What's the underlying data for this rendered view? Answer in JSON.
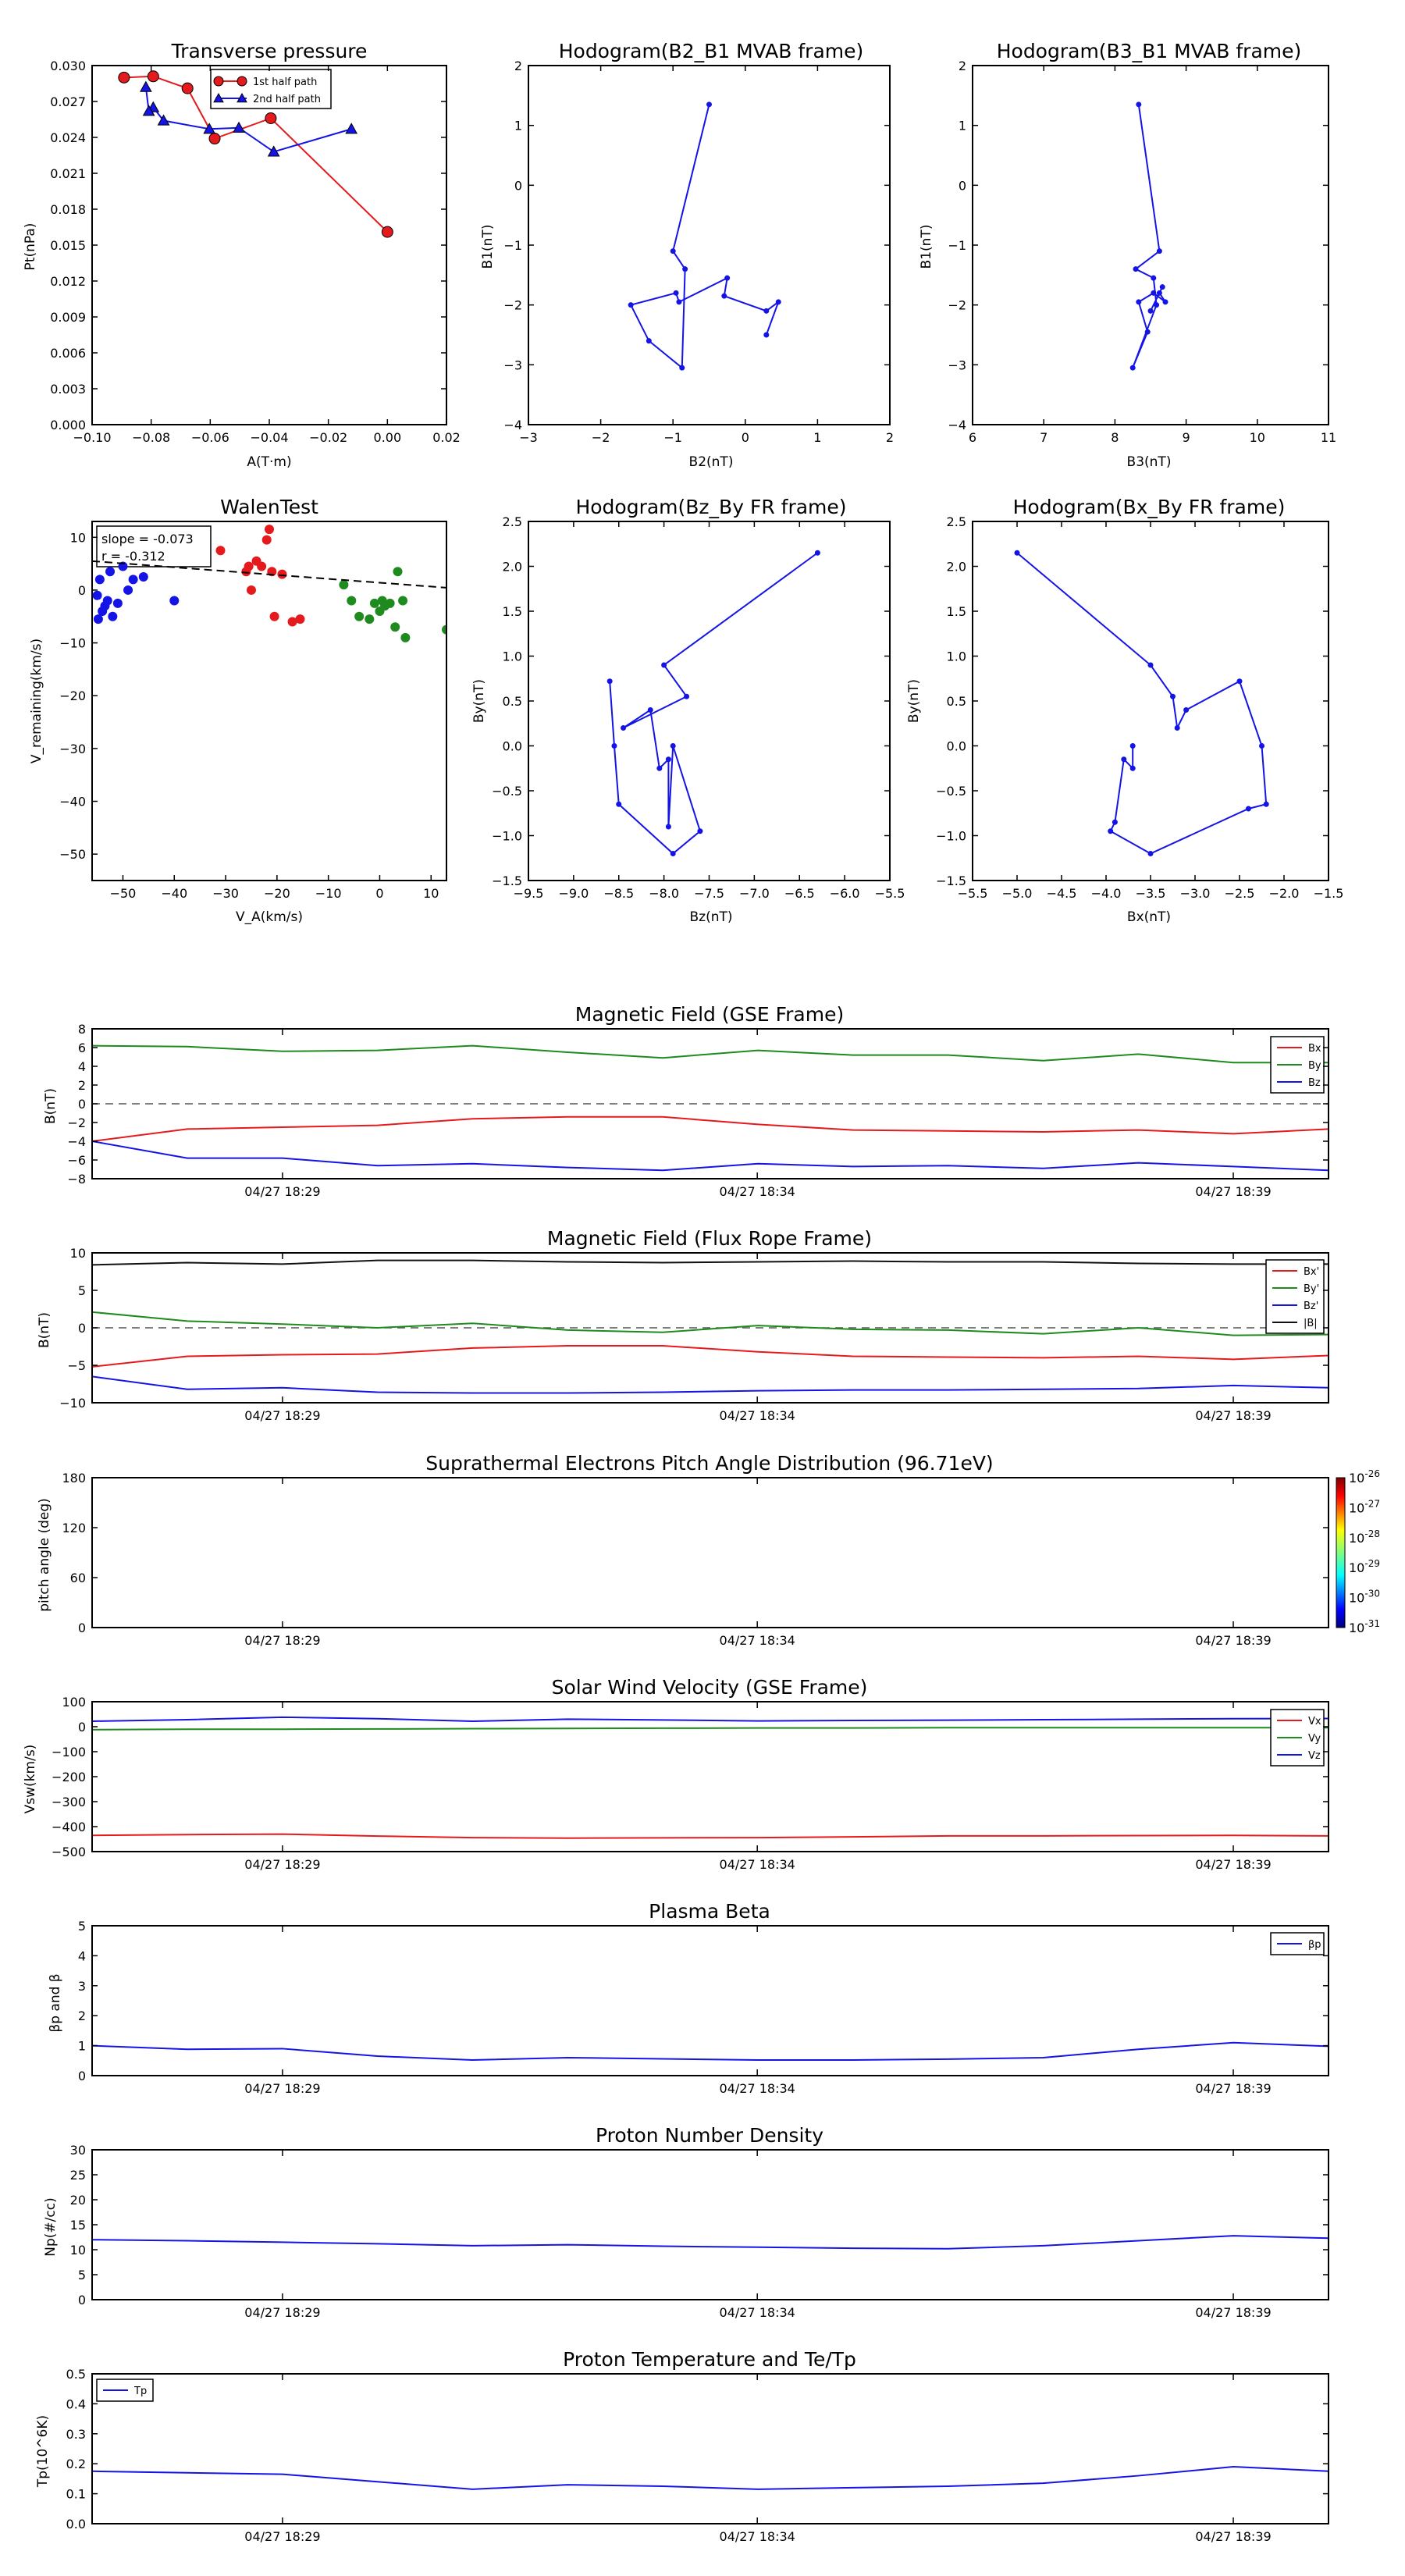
{
  "figure": {
    "colors": {
      "red": "#e41a1c",
      "green": "#1f8b1f",
      "blue": "#1414e6",
      "black": "#111111"
    }
  },
  "panels": {
    "transverse_pressure": {
      "title": "Transverse pressure",
      "xlabel": "A(T·m)",
      "ylabel": "Pt(nPa)"
    },
    "hodo_b2b1": {
      "title": "Hodogram(B2_B1 MVAB frame)",
      "xlabel": "B2(nT)",
      "ylabel": "B1(nT)"
    },
    "hodo_b3b1": {
      "title": "Hodogram(B3_B1 MVAB frame)",
      "xlabel": "B3(nT)",
      "ylabel": "B1(nT)"
    },
    "walen": {
      "title": "WalenTest",
      "xlabel": "V_A(km/s)",
      "ylabel": "V_remaining(km/s)",
      "annot1": "slope = -0.073",
      "annot2": "r = -0.312"
    },
    "hodo_bzby": {
      "title": "Hodogram(Bz_By FR frame)",
      "xlabel": "Bz(nT)",
      "ylabel": "By(nT)"
    },
    "hodo_bxby": {
      "title": "Hodogram(Bx_By FR frame)",
      "xlabel": "Bx(nT)",
      "ylabel": "By(nT)"
    },
    "mag_gse": {
      "title": "Magnetic Field (GSE Frame)",
      "ylabel": "B(nT)"
    },
    "mag_fr": {
      "title": "Magnetic Field (Flux Rope Frame)",
      "ylabel": "B(nT)"
    },
    "pad": {
      "title": "Suprathermal Electrons Pitch Angle Distribution (96.71eV)",
      "ylabel": "pitch angle (deg)",
      "colorbar_ticks": [
        "10^-26",
        "10^-27",
        "10^-28",
        "10^-29",
        "10^-30",
        "10^-31"
      ]
    },
    "vsw": {
      "title": "Solar Wind Velocity (GSE Frame)",
      "ylabel": "Vsw(km/s)"
    },
    "beta": {
      "title": "Plasma Beta",
      "ylabel": "βp and β"
    },
    "density": {
      "title": "Proton Number Density",
      "ylabel": "Np(#/cc)"
    },
    "temperature": {
      "title": "Proton Temperature and Te/Tp",
      "ylabel": "Tp(10^6K)"
    }
  },
  "chart_data": [
    {
      "id": "transverse_pressure",
      "type": "line",
      "xlim": [
        -0.1,
        0.02
      ],
      "ylim": [
        0,
        0.03
      ],
      "xticks": [
        "−0.10",
        "−0.08",
        "−0.06",
        "−0.04",
        "−0.02",
        "0.00",
        "0.02"
      ],
      "yticks": [
        "0.000",
        "0.003",
        "0.006",
        "0.009",
        "0.012",
        "0.015",
        "0.018",
        "0.021",
        "0.024",
        "0.027",
        "0.030"
      ],
      "legend_position": "upper-center",
      "series": [
        {
          "name": "1st half path",
          "color": "#e41a1c",
          "marker": "circle",
          "x": [
            0.0,
            -0.0395,
            -0.0585,
            -0.0677,
            -0.0793,
            -0.0892
          ],
          "y": [
            0.0161,
            0.0256,
            0.0239,
            0.0281,
            0.0291,
            0.029
          ]
        },
        {
          "name": "2nd half path",
          "color": "#1414e6",
          "marker": "triangle",
          "x": [
            -0.0122,
            -0.0385,
            -0.0503,
            -0.0603,
            -0.0758,
            -0.0793,
            -0.0808,
            -0.0818
          ],
          "y": [
            0.0247,
            0.0228,
            0.0248,
            0.0247,
            0.0254,
            0.0265,
            0.0262,
            0.0282
          ]
        }
      ]
    },
    {
      "id": "hodo_b2b1",
      "type": "line",
      "xlim": [
        -3.5,
        2.5
      ],
      "ylim": [
        -4,
        2
      ],
      "xticks": [
        "−3",
        "−2",
        "−1",
        "0",
        "1",
        "2"
      ],
      "yticks": [
        "−4",
        "−3",
        "−2",
        "−1",
        "0",
        "1",
        "2"
      ],
      "series": [
        {
          "color": "#1414e6",
          "x": [
            -0.5,
            -1.1,
            -0.9,
            -0.95,
            -1.5,
            -1.8,
            -1.05,
            -1.0,
            -0.2,
            -0.25,
            0.45,
            0.65,
            0.45
          ],
          "y": [
            1.35,
            -1.1,
            -1.4,
            -3.05,
            -2.6,
            -2.0,
            -1.8,
            -1.95,
            -1.55,
            -1.85,
            -2.1,
            -1.95,
            -2.5
          ]
        }
      ]
    },
    {
      "id": "hodo_b3b1",
      "type": "line",
      "xlim": [
        5.5,
        11.5
      ],
      "ylim": [
        -4,
        2
      ],
      "xticks": [
        "6",
        "7",
        "8",
        "9",
        "10",
        "11"
      ],
      "yticks": [
        "−4",
        "−3",
        "−2",
        "−1",
        "0",
        "1",
        "2"
      ],
      "series": [
        {
          "color": "#1414e6",
          "x": [
            8.3,
            8.65,
            8.25,
            8.55,
            8.6,
            8.2,
            8.45,
            8.3,
            8.55,
            8.75,
            8.65,
            8.7,
            8.5
          ],
          "y": [
            1.35,
            -1.1,
            -1.4,
            -1.55,
            -2.0,
            -3.05,
            -2.45,
            -1.95,
            -1.8,
            -1.95,
            -1.8,
            -1.7,
            -2.1
          ]
        }
      ]
    },
    {
      "id": "walen",
      "type": "scatter",
      "xlim": [
        -56,
        13
      ],
      "ylim": [
        -55,
        13
      ],
      "xticks": [
        "−50",
        "−40",
        "−30",
        "−20",
        "−10",
        "0",
        "10"
      ],
      "yticks": [
        "−50",
        "−40",
        "−30",
        "−20",
        "−10",
        "0",
        "10"
      ],
      "fit": {
        "slope": -0.073,
        "intercept": 1.4,
        "style": "dashed"
      },
      "series": [
        {
          "color": "#1414e6",
          "x": [
            -55,
            -54.5,
            -54,
            -53.5,
            -53,
            -52,
            -51,
            -50,
            -49,
            -48,
            -46,
            -40,
            -52.5,
            -54.8
          ],
          "y": [
            -1,
            2,
            -4,
            -3,
            -2,
            -5,
            -2.5,
            4.5,
            0,
            2,
            2.5,
            -2,
            3.5,
            -5.5
          ]
        },
        {
          "color": "#e41a1c",
          "x": [
            -31,
            -26,
            -25.5,
            -24,
            -23,
            -22,
            -21.5,
            -21,
            -20.5,
            -19,
            -17,
            -15.5,
            -25
          ],
          "y": [
            7.5,
            3.5,
            4.5,
            5.5,
            4.5,
            9.5,
            11.5,
            3.5,
            -5,
            3,
            -6,
            -5.5,
            0
          ]
        },
        {
          "color": "#1f8b1f",
          "x": [
            -7,
            -5.5,
            -4,
            -2,
            -1,
            0,
            0.5,
            1,
            2,
            3,
            3.5,
            4.5,
            5,
            13
          ],
          "y": [
            1,
            -2,
            -5,
            -5.5,
            -2.5,
            -4,
            -2,
            -3,
            -2.5,
            -7,
            3.5,
            -2,
            -9,
            -7.5
          ]
        }
      ]
    },
    {
      "id": "hodo_bzby",
      "type": "line",
      "xlim": [
        -9.5,
        -5.5
      ],
      "ylim": [
        -1.5,
        2.5
      ],
      "xticks": [
        "−9.5",
        "−9.0",
        "−8.5",
        "−8.0",
        "−7.5",
        "−7.0",
        "−6.5",
        "−6.0",
        "−5.5"
      ],
      "yticks": [
        "−1.5",
        "−1.0",
        "−0.5",
        "0.0",
        "0.5",
        "1.0",
        "1.5",
        "2.0",
        "2.5"
      ],
      "series": [
        {
          "color": "#1414e6",
          "x": [
            -6.3,
            -8.0,
            -7.75,
            -8.45,
            -8.15,
            -8.05,
            -7.95,
            -7.95,
            -7.9,
            -7.6,
            -7.9,
            -8.5,
            -8.55,
            -8.6
          ],
          "y": [
            2.15,
            0.9,
            0.55,
            0.2,
            0.4,
            -0.25,
            -0.15,
            -0.9,
            0.0,
            -0.95,
            -1.2,
            -0.65,
            0.0,
            0.72
          ]
        }
      ]
    },
    {
      "id": "hodo_bxby",
      "type": "line",
      "xlim": [
        -5.5,
        -1.5
      ],
      "ylim": [
        -1.5,
        2.5
      ],
      "xticks": [
        "−5.5",
        "−5.0",
        "−4.5",
        "−4.0",
        "−3.5",
        "−3.0",
        "−2.5",
        "−2.0",
        "−1.5"
      ],
      "yticks": [
        "−1.5",
        "−1.0",
        "−0.5",
        "0.0",
        "0.5",
        "1.0",
        "1.5",
        "2.0",
        "2.5"
      ],
      "series": [
        {
          "color": "#1414e6",
          "x": [
            -5.0,
            -3.5,
            -3.25,
            -3.2,
            -3.1,
            -2.5,
            -2.25,
            -2.2,
            -2.4,
            -3.5,
            -3.95,
            -3.9,
            -3.8,
            -3.7,
            -3.7
          ],
          "y": [
            2.15,
            0.9,
            0.55,
            0.2,
            0.4,
            0.72,
            0.0,
            -0.65,
            -0.7,
            -1.2,
            -0.95,
            -0.85,
            -0.15,
            -0.25,
            0.0
          ]
        }
      ]
    },
    {
      "id": "mag_gse",
      "type": "line",
      "ylim": [
        -8,
        8
      ],
      "yticks": [
        "−8",
        "−6",
        "−4",
        "−2",
        "0",
        "2",
        "4",
        "6",
        "8"
      ],
      "xticks": [
        "04/27 18:29",
        "04/27 18:34",
        "04/27 18:39"
      ],
      "zero_line": true,
      "series": [
        {
          "name": "Bx",
          "color": "#e41a1c",
          "y": [
            -4.0,
            -2.7,
            -2.5,
            -2.3,
            -1.6,
            -1.4,
            -1.4,
            -2.2,
            -2.8,
            -2.9,
            -3.0,
            -2.8,
            -3.2,
            -2.7
          ]
        },
        {
          "name": "By",
          "color": "#1f8b1f",
          "y": [
            6.2,
            6.1,
            5.6,
            5.7,
            6.2,
            5.5,
            4.9,
            5.7,
            5.2,
            5.2,
            4.6,
            5.3,
            4.4,
            4.4
          ]
        },
        {
          "name": "Bz",
          "color": "#1414e6",
          "y": [
            -4.0,
            -5.8,
            -5.8,
            -6.6,
            -6.4,
            -6.8,
            -7.1,
            -6.4,
            -6.7,
            -6.6,
            -6.9,
            -6.3,
            -6.7,
            -7.1
          ]
        }
      ]
    },
    {
      "id": "mag_fr",
      "type": "line",
      "ylim": [
        -10,
        10
      ],
      "yticks": [
        "−10",
        "−5",
        "0",
        "5",
        "10"
      ],
      "xticks": [
        "04/27 18:29",
        "04/27 18:34",
        "04/27 18:39"
      ],
      "zero_line": true,
      "series": [
        {
          "name": "Bx'",
          "color": "#e41a1c",
          "y": [
            -5.2,
            -3.8,
            -3.6,
            -3.5,
            -2.7,
            -2.4,
            -2.4,
            -3.2,
            -3.8,
            -3.9,
            -4.0,
            -3.8,
            -4.2,
            -3.7
          ]
        },
        {
          "name": "By'",
          "color": "#1f8b1f",
          "y": [
            2.1,
            0.9,
            0.5,
            0.0,
            0.6,
            -0.3,
            -0.6,
            0.3,
            -0.2,
            -0.3,
            -0.8,
            0.0,
            -1.0,
            -0.9
          ]
        },
        {
          "name": "Bz'",
          "color": "#1414e6",
          "y": [
            -6.5,
            -8.2,
            -8.0,
            -8.6,
            -8.7,
            -8.7,
            -8.6,
            -8.4,
            -8.3,
            -8.3,
            -8.2,
            -8.1,
            -7.7,
            -8.0
          ]
        },
        {
          "name": "|B|",
          "color": "#111111",
          "y": [
            8.4,
            8.7,
            8.5,
            9.0,
            9.0,
            8.8,
            8.7,
            8.8,
            8.9,
            8.8,
            8.8,
            8.6,
            8.5,
            8.5
          ]
        }
      ]
    },
    {
      "id": "pad",
      "type": "heatmap",
      "ylim": [
        0,
        180
      ],
      "yticks": [
        "0",
        "60",
        "120",
        "180"
      ],
      "xticks": [
        "04/27 18:29",
        "04/27 18:34",
        "04/27 18:39"
      ],
      "empty": true
    },
    {
      "id": "vsw",
      "type": "line",
      "ylim": [
        -500,
        100
      ],
      "yticks": [
        "−500",
        "−400",
        "−300",
        "−200",
        "−100",
        "0",
        "100"
      ],
      "xticks": [
        "04/27 18:29",
        "04/27 18:34",
        "04/27 18:39"
      ],
      "series": [
        {
          "name": "Vx",
          "color": "#e41a1c",
          "y": [
            -435,
            -432,
            -430,
            -438,
            -444,
            -446,
            -445,
            -444,
            -441,
            -437,
            -437,
            -436,
            -435,
            -437
          ]
        },
        {
          "name": "Vy",
          "color": "#1f8b1f",
          "y": [
            -12,
            -10,
            -10,
            -9,
            -8,
            -7,
            -6,
            -5,
            -5,
            -4,
            -4,
            -4,
            -4,
            -4
          ]
        },
        {
          "name": "Vz",
          "color": "#1414e6",
          "y": [
            22,
            28,
            38,
            32,
            22,
            30,
            27,
            23,
            25,
            26,
            28,
            30,
            32,
            33
          ]
        }
      ]
    },
    {
      "id": "beta",
      "type": "line",
      "ylim": [
        0,
        5
      ],
      "yticks": [
        "0",
        "1",
        "2",
        "3",
        "4",
        "5"
      ],
      "xticks": [
        "04/27 18:29",
        "04/27 18:34",
        "04/27 18:39"
      ],
      "series": [
        {
          "name": "βp",
          "color": "#1414e6",
          "y": [
            1.0,
            0.88,
            0.9,
            0.65,
            0.52,
            0.6,
            0.56,
            0.52,
            0.52,
            0.55,
            0.6,
            0.88,
            1.1,
            0.98
          ]
        }
      ]
    },
    {
      "id": "density",
      "type": "line",
      "ylim": [
        0,
        30
      ],
      "yticks": [
        "0",
        "5",
        "10",
        "15",
        "20",
        "25",
        "30"
      ],
      "xticks": [
        "04/27 18:29",
        "04/27 18:34",
        "04/27 18:39"
      ],
      "series": [
        {
          "color": "#1414e6",
          "y": [
            12.0,
            11.8,
            11.5,
            11.2,
            10.8,
            11.0,
            10.7,
            10.5,
            10.3,
            10.2,
            10.8,
            11.8,
            12.8,
            12.3
          ]
        }
      ]
    },
    {
      "id": "temperature",
      "type": "line",
      "ylim": [
        0,
        0.5
      ],
      "yticks": [
        "0.0",
        "0.1",
        "0.2",
        "0.3",
        "0.4",
        "0.5"
      ],
      "xticks": [
        "04/27 18:29",
        "04/27 18:34",
        "04/27 18:39"
      ],
      "series": [
        {
          "name": "Tp",
          "color": "#1414e6",
          "y": [
            0.175,
            0.17,
            0.165,
            0.14,
            0.115,
            0.13,
            0.125,
            0.115,
            0.12,
            0.125,
            0.135,
            0.16,
            0.19,
            0.175
          ]
        }
      ]
    }
  ]
}
